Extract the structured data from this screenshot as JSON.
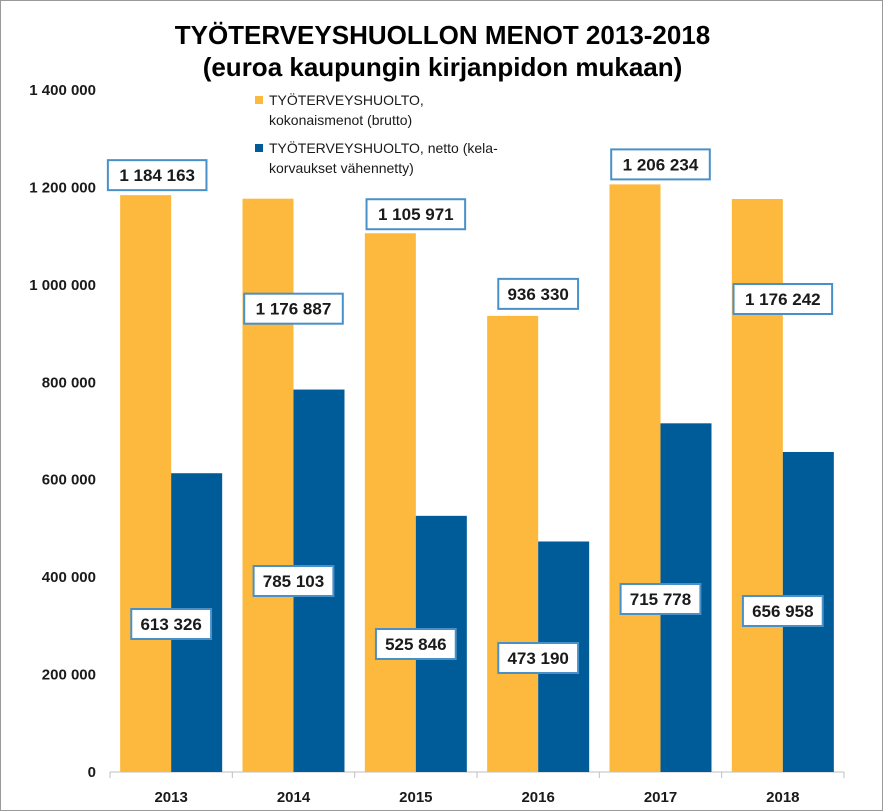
{
  "chart_data": {
    "type": "bar",
    "title": [
      "TYÖTERVEYSHUOLLON MENOT 2013-2018",
      "(euroa kaupungin kirjanpidon mukaan)"
    ],
    "categories": [
      "2013",
      "2014",
      "2015",
      "2016",
      "2017",
      "2018"
    ],
    "series": [
      {
        "name": "TYÖTERVEYSHUOLTO, kokonaismenot (brutto)",
        "legend_lines": [
          "TYÖTERVEYSHUOLTO,",
          "kokonaismenot (brutto)"
        ],
        "color": "#FDB93D",
        "values": [
          1184163,
          1176887,
          1105971,
          936330,
          1206234,
          1176242
        ],
        "labels": [
          "1 184 163",
          "1 176 887",
          "1 105 971",
          "936 330",
          "1 206 234",
          "1 176 242"
        ]
      },
      {
        "name": "TYÖTERVEYSHUOLTO, netto (kela-korvaukset vähennetty)",
        "legend_lines": [
          "TYÖTERVEYSHUOLTO, netto (kela-",
          "korvaukset vähennetty)"
        ],
        "color": "#005C99",
        "values": [
          613326,
          785103,
          525846,
          473190,
          715778,
          656958
        ],
        "labels": [
          "613 326",
          "785 103",
          "525 846",
          "473 190",
          "715 778",
          "656 958"
        ]
      }
    ],
    "ylim": [
      0,
      1400000
    ],
    "yticks": [
      0,
      200000,
      400000,
      600000,
      800000,
      1000000,
      1200000,
      1400000
    ],
    "ytick_labels": [
      "0",
      "200 000",
      "400 000",
      "600 000",
      "800 000",
      "1 000 000",
      "1 200 000",
      "1 400 000"
    ],
    "xlabel": "",
    "ylabel": "",
    "grid": false,
    "legend_position": "top-left inside plot",
    "label_box_border_color": "#4A90C8"
  }
}
